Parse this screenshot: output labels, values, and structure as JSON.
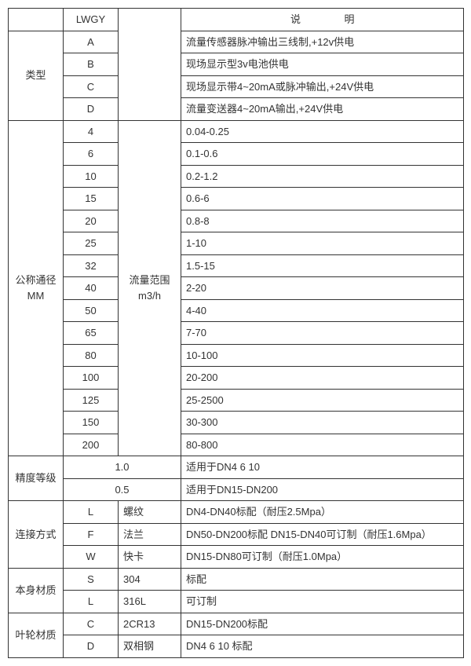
{
  "header": {
    "lwgy": "LWGY",
    "desc": "说    明"
  },
  "type": {
    "label": "类型",
    "rows": [
      {
        "code": "A",
        "desc": "流量传感器脉冲输出三线制,+12v供电"
      },
      {
        "code": "B",
        "desc": "现场显示型3v电池供电"
      },
      {
        "code": "C",
        "desc": "现场显示带4~20mA或脉冲输出,+24V供电"
      },
      {
        "code": "D",
        "desc": "流量变送器4~20mA输出,+24V供电"
      }
    ]
  },
  "dn": {
    "label_line1": "公称通径",
    "label_line2": "MM",
    "range_line1": "流量范围",
    "range_line2": "m3/h",
    "rows": [
      {
        "code": "4",
        "val": "0.04-0.25"
      },
      {
        "code": "6",
        "val": "0.1-0.6"
      },
      {
        "code": "10",
        "val": "0.2-1.2"
      },
      {
        "code": "15",
        "val": "0.6-6"
      },
      {
        "code": "20",
        "val": "0.8-8"
      },
      {
        "code": "25",
        "val": "1-10"
      },
      {
        "code": "32",
        "val": "1.5-15"
      },
      {
        "code": "40",
        "val": "2-20"
      },
      {
        "code": "50",
        "val": "4-40"
      },
      {
        "code": "65",
        "val": "7-70"
      },
      {
        "code": "80",
        "val": "10-100"
      },
      {
        "code": "100",
        "val": "20-200"
      },
      {
        "code": "125",
        "val": "25-2500"
      },
      {
        "code": "150",
        "val": "30-300"
      },
      {
        "code": "200",
        "val": "80-800"
      }
    ]
  },
  "accuracy": {
    "label": "精度等级",
    "rows": [
      {
        "code": "1.0",
        "desc": "适用于DN4  6  10"
      },
      {
        "code": "0.5",
        "desc": "适用于DN15-DN200"
      }
    ]
  },
  "conn": {
    "label": "连接方式",
    "rows": [
      {
        "code": "L",
        "name": "螺纹",
        "desc": "DN4-DN40标配（耐压2.5Mpa）"
      },
      {
        "code": "F",
        "name": "法兰",
        "desc": "DN50-DN200标配 DN15-DN40可订制（耐压1.6Mpa）"
      },
      {
        "code": "W",
        "name": "快卡",
        "desc": "DN15-DN80可订制（耐压1.0Mpa）"
      }
    ]
  },
  "body_mat": {
    "label": "本身材质",
    "rows": [
      {
        "code": "S",
        "name": "304",
        "desc": "标配"
      },
      {
        "code": "L",
        "name": "316L",
        "desc": "可订制"
      }
    ]
  },
  "impeller_mat": {
    "label": "叶轮材质",
    "rows": [
      {
        "code": "C",
        "name": "2CR13",
        "desc": "DN15-DN200标配"
      },
      {
        "code": "D",
        "name": "双相钢",
        "desc": "DN4 6 10 标配"
      }
    ]
  }
}
